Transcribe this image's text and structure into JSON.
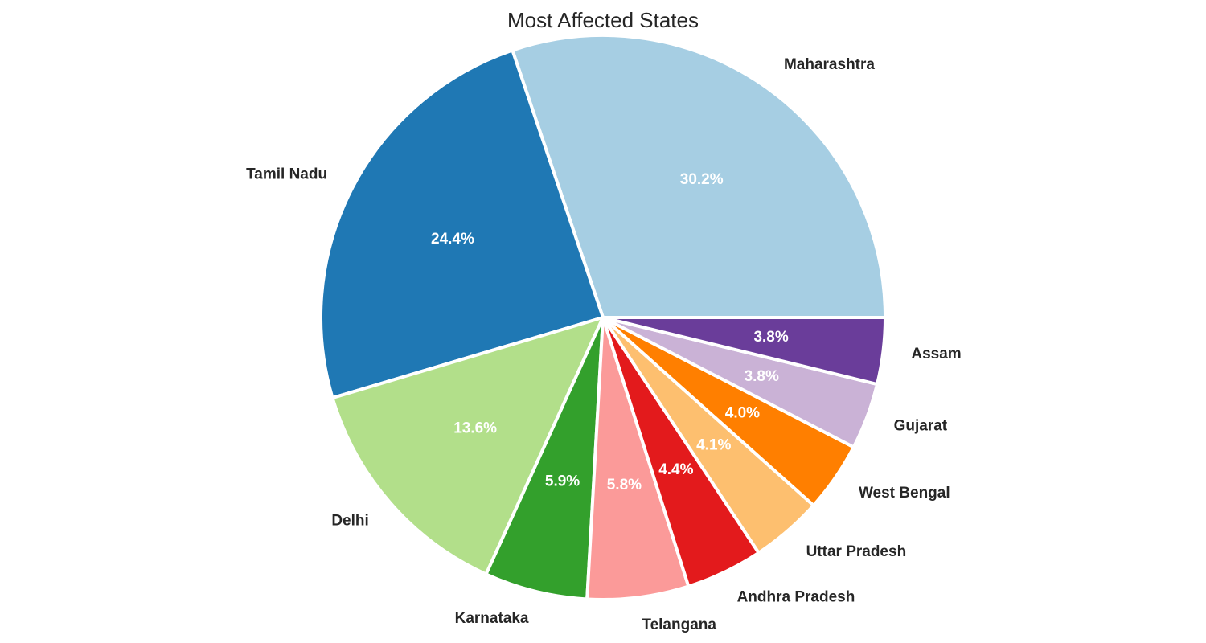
{
  "chart_data": {
    "type": "pie",
    "title": "Most Affected States",
    "categories": [
      "Maharashtra",
      "Tamil Nadu",
      "Delhi",
      "Karnataka",
      "Telangana",
      "Andhra Pradesh",
      "Uttar Pradesh",
      "West Bengal",
      "Gujarat",
      "Assam"
    ],
    "values": [
      30.2,
      24.4,
      13.6,
      5.9,
      5.8,
      4.4,
      4.1,
      4.0,
      3.8,
      3.8
    ],
    "pct_labels": [
      "30.2%",
      "24.4%",
      "13.6%",
      "5.9%",
      "5.8%",
      "4.4%",
      "4.1%",
      "4.0%",
      "3.8%",
      "3.8%"
    ],
    "start_angle_deg": 0,
    "direction": "counterclockwise",
    "colors": [
      "#a6cee3",
      "#1f78b4",
      "#b2df8a",
      "#33a02c",
      "#fb9a99",
      "#e31a1c",
      "#fdbf6f",
      "#ff7f00",
      "#cab2d6",
      "#6a3d9a"
    ],
    "legend": "none"
  }
}
